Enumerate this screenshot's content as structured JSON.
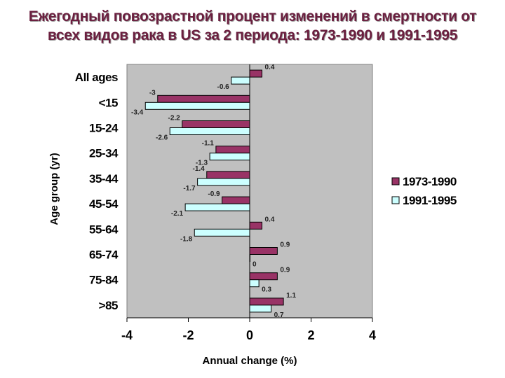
{
  "chart_data": {
    "type": "bar",
    "orientation": "horizontal",
    "title": "Ежегодный повозрастной процент изменений в смертности от всех видов рака в US за 2 периода: 1973-1990 и 1991-1995",
    "xlabel": "Annual change (%)",
    "ylabel": "Age group (yr)",
    "categories": [
      "All ages",
      "<15",
      "15-24",
      "25-34",
      "35-44",
      "45-54",
      "55-64",
      "65-74",
      "75-84",
      ">85"
    ],
    "series": [
      {
        "name": "1973-1990",
        "color": "#993366",
        "values": [
          0.4,
          -3,
          -2.2,
          -1.1,
          -1.4,
          -0.9,
          0.4,
          0.9,
          0.9,
          1.1
        ],
        "labels": [
          "0.4",
          "-3",
          "-2.2",
          "-1.1",
          "-1.4",
          "-0.9",
          "0.4",
          "0.9",
          "0.9",
          "1.1"
        ]
      },
      {
        "name": "1991-1995",
        "color": "#ccffff",
        "values": [
          -0.6,
          -3.4,
          -2.6,
          -1.3,
          -1.7,
          -2.1,
          -1.8,
          0,
          0.3,
          0.7
        ],
        "labels": [
          "-0.6",
          "-3.4",
          "-2.6",
          "-1.3",
          "-1.7",
          "-2.1",
          "-1.8",
          "0",
          "0.3",
          "0.7"
        ]
      }
    ],
    "xlim": [
      -4,
      4
    ],
    "xticks": [
      "-4",
      "-2",
      "0",
      "2",
      "4"
    ],
    "plot_background": "#c0c0c0",
    "grid": false,
    "legend_position": "right"
  }
}
